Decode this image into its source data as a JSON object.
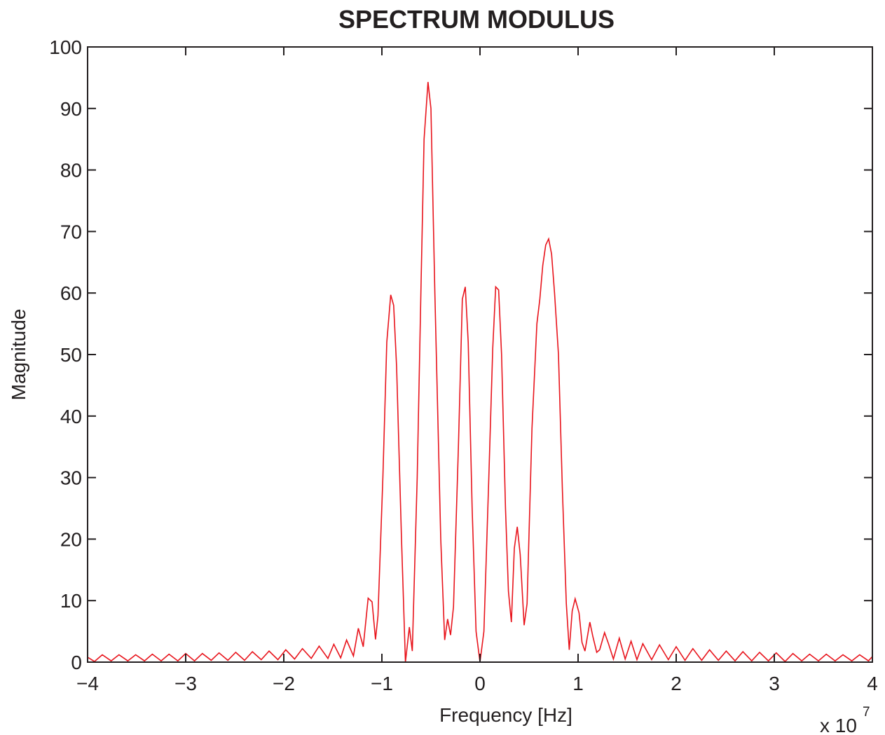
{
  "chart_data": {
    "type": "line",
    "title": "SPECTRUM MODULUS",
    "xlabel": "Frequency [Hz]",
    "ylabel": "Magnitude",
    "x_scale_label": "x 10",
    "x_scale_exponent": "7",
    "xlim": [
      -4,
      4
    ],
    "ylim": [
      0,
      100
    ],
    "xticks": [
      {
        "value": -4,
        "label": "−4"
      },
      {
        "value": -3,
        "label": "−3"
      },
      {
        "value": -2,
        "label": "−2"
      },
      {
        "value": -1,
        "label": "−1"
      },
      0,
      1,
      2,
      3,
      4
    ],
    "yticks": [
      0,
      10,
      20,
      30,
      40,
      50,
      60,
      70,
      80,
      90,
      100
    ],
    "grid": false,
    "x": [
      -4,
      -3.93,
      -3.85,
      -3.76,
      -3.68,
      -3.59,
      -3.51,
      -3.42,
      -3.34,
      -3.25,
      -3.17,
      -3.08,
      -3.0,
      -2.91,
      -2.83,
      -2.74,
      -2.66,
      -2.57,
      -2.49,
      -2.4,
      -2.32,
      -2.23,
      -2.15,
      -2.06,
      -1.98,
      -1.89,
      -1.81,
      -1.72,
      -1.64,
      -1.55,
      -1.49,
      -1.42,
      -1.36,
      -1.29,
      -1.24,
      -1.19,
      -1.14,
      -1.1,
      -1.065,
      -1.04,
      -0.99,
      -0.95,
      -0.91,
      -0.88,
      -0.85,
      -0.8,
      -0.76,
      -0.72,
      -0.69,
      -0.64,
      -0.6,
      -0.57,
      -0.53,
      -0.5,
      -0.46,
      -0.4,
      -0.36,
      -0.33,
      -0.3,
      -0.27,
      -0.22,
      -0.18,
      -0.15,
      -0.12,
      -0.08,
      -0.04,
      0,
      0.04,
      0.09,
      0.13,
      0.16,
      0.19,
      0.22,
      0.26,
      0.29,
      0.32,
      0.35,
      0.38,
      0.41,
      0.45,
      0.48,
      0.53,
      0.58,
      0.61,
      0.64,
      0.67,
      0.7,
      0.73,
      0.76,
      0.8,
      0.84,
      0.88,
      0.91,
      0.94,
      0.97,
      1.01,
      1.04,
      1.07,
      1.12,
      1.15,
      1.19,
      1.22,
      1.27,
      1.31,
      1.36,
      1.42,
      1.48,
      1.54,
      1.6,
      1.66,
      1.75,
      1.83,
      1.92,
      2.0,
      2.09,
      2.17,
      2.26,
      2.34,
      2.43,
      2.51,
      2.6,
      2.68,
      2.77,
      2.85,
      2.94,
      3.02,
      3.11,
      3.19,
      3.28,
      3.36,
      3.45,
      3.53,
      3.62,
      3.7,
      3.79,
      3.87,
      3.96,
      4.0
    ],
    "series": [
      {
        "color": "#e8141c",
        "values": [
          0.8,
          0.1,
          1.2,
          0.2,
          1.2,
          0.2,
          1.2,
          0.2,
          1.3,
          0.2,
          1.3,
          0.2,
          1.4,
          0.2,
          1.4,
          0.3,
          1.5,
          0.3,
          1.6,
          0.3,
          1.7,
          0.4,
          1.8,
          0.4,
          2.0,
          0.5,
          2.2,
          0.6,
          2.6,
          0.6,
          2.9,
          0.7,
          3.6,
          1.0,
          5.5,
          2.5,
          10.4,
          9.8,
          3.7,
          7.5,
          30,
          52,
          59.7,
          58,
          48,
          20,
          0,
          5.7,
          1.8,
          30,
          62,
          85,
          94.3,
          90,
          60,
          20,
          3.6,
          7,
          4.4,
          9,
          35,
          59,
          61,
          52,
          25,
          5,
          0,
          5,
          30,
          51,
          61,
          60.5,
          50,
          25,
          11.5,
          6.5,
          18.5,
          22,
          17.5,
          6,
          9.5,
          38,
          55,
          59,
          64.5,
          67.8,
          68.8,
          66.3,
          60,
          50,
          28,
          9.5,
          2,
          8.3,
          10.3,
          8,
          3.2,
          1.8,
          6.5,
          4.2,
          1.6,
          2,
          4.8,
          3,
          0.5,
          3.9,
          0.5,
          3.4,
          0.4,
          3.0,
          0.4,
          2.8,
          0.4,
          2.5,
          0.3,
          2.2,
          0.3,
          2.0,
          0.3,
          1.8,
          0.2,
          1.7,
          0.2,
          1.6,
          0.2,
          1.5,
          0.1,
          1.4,
          0.2,
          1.3,
          0.2,
          1.3,
          0.2,
          1.2,
          0.2,
          1.2,
          0.2,
          0.9
        ]
      }
    ]
  }
}
